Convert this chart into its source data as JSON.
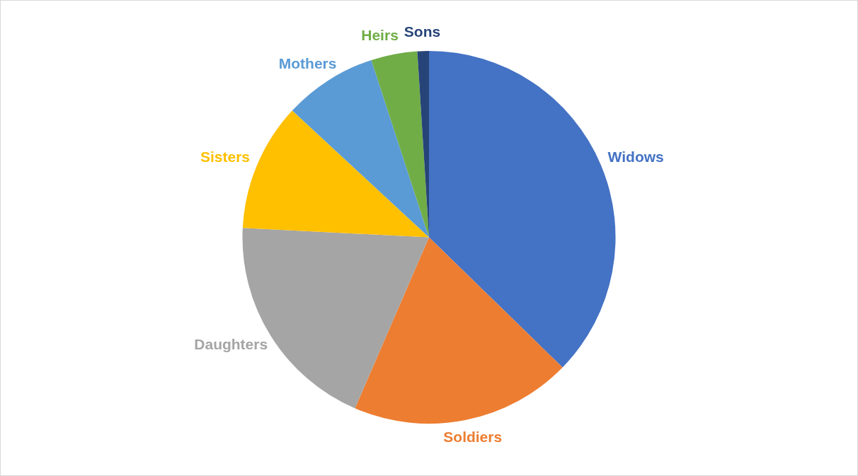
{
  "chart_data": {
    "type": "pie",
    "categories": [
      "Widows",
      "Soldiers",
      "Daughters",
      "Sisters",
      "Mothers",
      "Heirs",
      "Sons"
    ],
    "values": [
      37.3,
      19.2,
      19.3,
      11.1,
      8.1,
      4.0,
      1.0
    ],
    "colors": [
      "#4472c4",
      "#ed7d31",
      "#a5a5a5",
      "#ffc000",
      "#5b9bd5",
      "#70ad47",
      "#264478"
    ],
    "legend": false
  }
}
